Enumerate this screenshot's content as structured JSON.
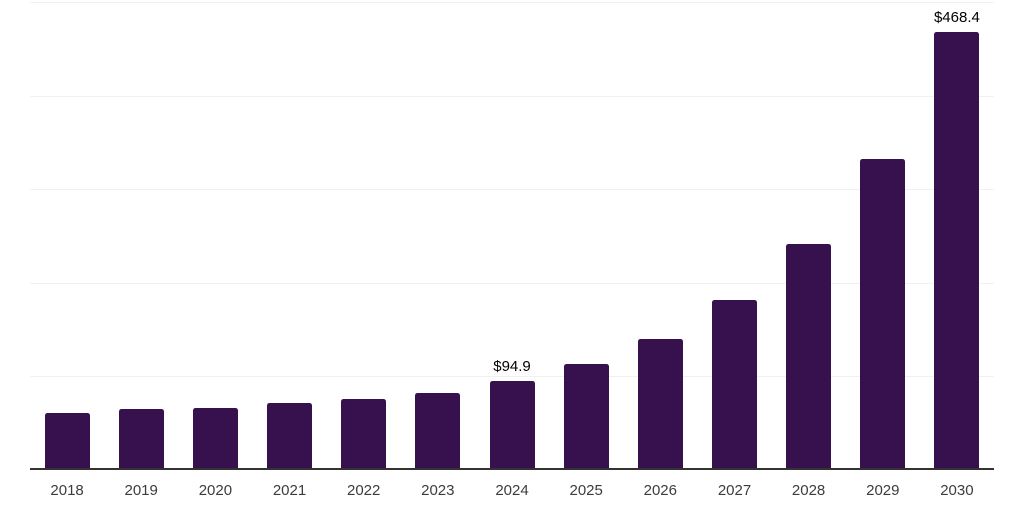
{
  "chart_data": {
    "type": "bar",
    "title": "",
    "xlabel": "",
    "ylabel": "",
    "categories": [
      "2018",
      "2019",
      "2020",
      "2021",
      "2022",
      "2023",
      "2024",
      "2025",
      "2026",
      "2027",
      "2028",
      "2029",
      "2030"
    ],
    "values": [
      61.5,
      65.0,
      66.0,
      71.5,
      76.0,
      82.5,
      94.9,
      113.0,
      140.0,
      181.5,
      241.5,
      333.0,
      468.4
    ],
    "point_labels": [
      "",
      "",
      "",
      "",
      "",
      "",
      "$94.9",
      "",
      "",
      "",
      "",
      "",
      "$468.4"
    ],
    "ylim": [
      0,
      500
    ],
    "gridline_values": [
      100,
      200,
      300,
      400,
      500
    ],
    "grid": "horizontal",
    "legend": "none",
    "colors": {
      "bar": "#36114d",
      "axis": "#333333",
      "gridline": "#f0f0f0",
      "value_label": "#000000",
      "tick_label": "#3c3c3c",
      "background": "#ffffff"
    }
  }
}
